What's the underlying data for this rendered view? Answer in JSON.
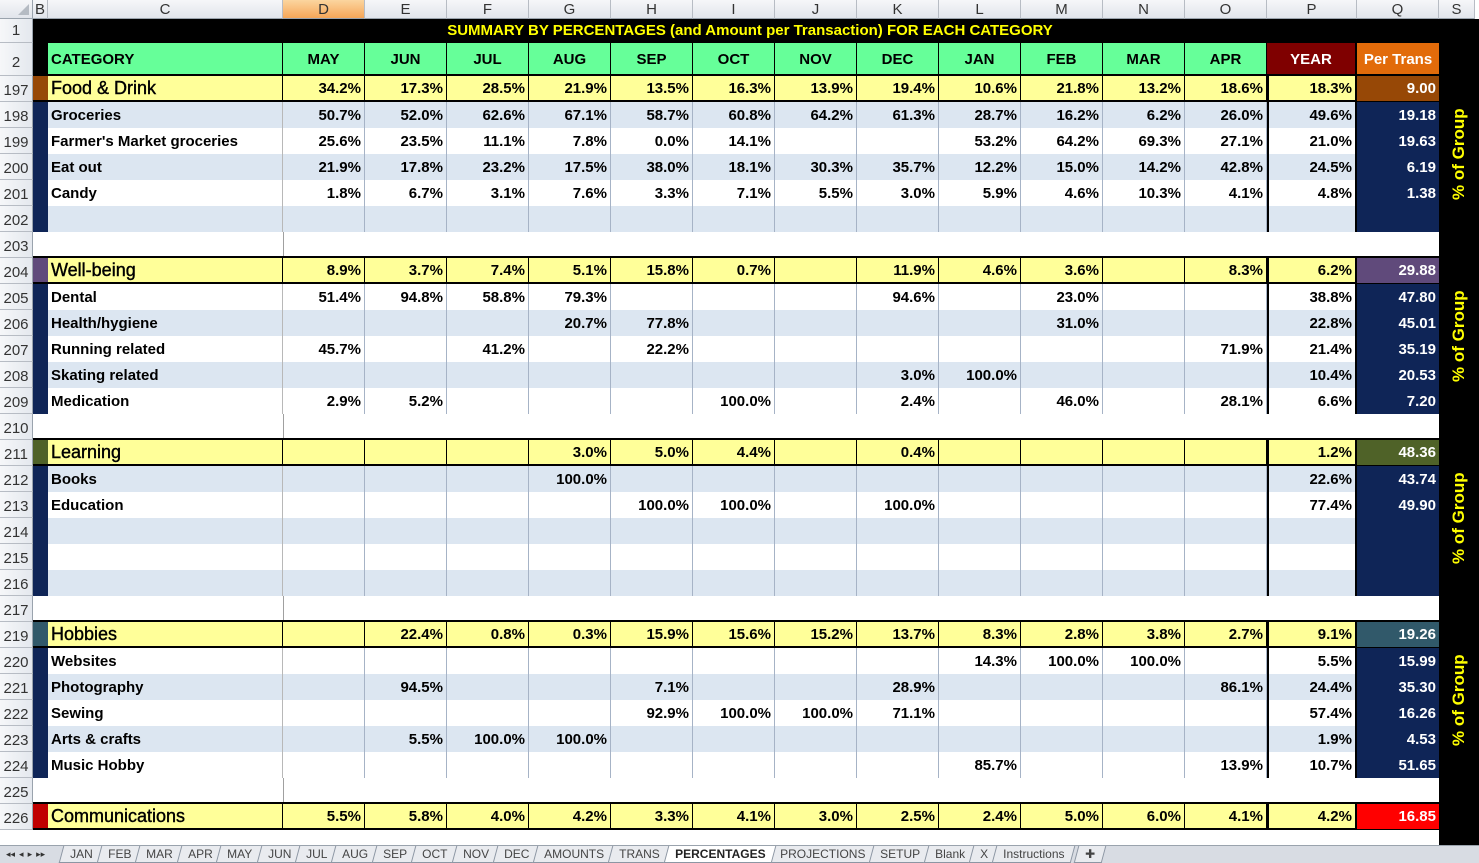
{
  "sheet": {
    "column_headers": [
      "B",
      "C",
      "D",
      "E",
      "F",
      "G",
      "H",
      "I",
      "J",
      "K",
      "L",
      "M",
      "N",
      "O",
      "P",
      "Q",
      "S"
    ],
    "selected_column": "D",
    "title": "SUMMARY BY PERCENTAGES (and Amount per Transaction) FOR EACH CATEGORY",
    "header": {
      "category": "CATEGORY",
      "months": [
        "MAY",
        "JUN",
        "JUL",
        "AUG",
        "SEP",
        "OCT",
        "NOV",
        "DEC",
        "JAN",
        "FEB",
        "MAR",
        "APR"
      ],
      "year": "YEAR",
      "per_trans": "Per Trans"
    },
    "side_label": "% of Group",
    "colors": {
      "header_green": "#66ff99",
      "year_red": "#7f0000",
      "per_trans_orange": "#e26b0a",
      "group_yellow": "#ffff99",
      "row_blue": "#dce6f1",
      "navy": "#0f2557",
      "title_yellow": "#ffff00"
    },
    "rows": [
      {
        "num": "197",
        "type": "group",
        "color": "#974806",
        "name": "Food & Drink",
        "values": [
          "34.2%",
          "17.3%",
          "28.5%",
          "21.9%",
          "13.5%",
          "16.3%",
          "13.9%",
          "19.4%",
          "10.6%",
          "21.8%",
          "13.2%",
          "18.6%"
        ],
        "year": "18.3%",
        "per_trans": "9.00"
      },
      {
        "num": "198",
        "type": "item",
        "name": "Groceries",
        "values": [
          "50.7%",
          "52.0%",
          "62.6%",
          "67.1%",
          "58.7%",
          "60.8%",
          "64.2%",
          "61.3%",
          "28.7%",
          "16.2%",
          "6.2%",
          "26.0%"
        ],
        "year": "49.6%",
        "per_trans": "19.18"
      },
      {
        "num": "199",
        "type": "item",
        "name": "Farmer's Market groceries",
        "values": [
          "25.6%",
          "23.5%",
          "11.1%",
          "7.8%",
          "0.0%",
          "14.1%",
          "",
          "",
          "53.2%",
          "64.2%",
          "69.3%",
          "27.1%"
        ],
        "year": "21.0%",
        "per_trans": "19.63"
      },
      {
        "num": "200",
        "type": "item",
        "name": "Eat out",
        "values": [
          "21.9%",
          "17.8%",
          "23.2%",
          "17.5%",
          "38.0%",
          "18.1%",
          "30.3%",
          "35.7%",
          "12.2%",
          "15.0%",
          "14.2%",
          "42.8%"
        ],
        "year": "24.5%",
        "per_trans": "6.19"
      },
      {
        "num": "201",
        "type": "item",
        "name": "Candy",
        "values": [
          "1.8%",
          "6.7%",
          "3.1%",
          "7.6%",
          "3.3%",
          "7.1%",
          "5.5%",
          "3.0%",
          "5.9%",
          "4.6%",
          "10.3%",
          "4.1%"
        ],
        "year": "4.8%",
        "per_trans": "1.38"
      },
      {
        "num": "202",
        "type": "item",
        "name": "",
        "values": [
          "",
          "",
          "",
          "",
          "",
          "",
          "",
          "",
          "",
          "",
          "",
          ""
        ],
        "year": "",
        "per_trans": ""
      },
      {
        "num": "203",
        "type": "blank"
      },
      {
        "num": "204",
        "type": "group",
        "color": "#604a7b",
        "name": "Well-being",
        "values": [
          "8.9%",
          "3.7%",
          "7.4%",
          "5.1%",
          "15.8%",
          "0.7%",
          "",
          "11.9%",
          "4.6%",
          "3.6%",
          "",
          "8.3%"
        ],
        "year": "6.2%",
        "per_trans": "29.88"
      },
      {
        "num": "205",
        "type": "item",
        "name": "Dental",
        "values": [
          "51.4%",
          "94.8%",
          "58.8%",
          "79.3%",
          "",
          "",
          "",
          "94.6%",
          "",
          "23.0%",
          "",
          ""
        ],
        "year": "38.8%",
        "per_trans": "47.80"
      },
      {
        "num": "206",
        "type": "item",
        "name": "Health/hygiene",
        "values": [
          "",
          "",
          "",
          "20.7%",
          "77.8%",
          "",
          "",
          "",
          "",
          "31.0%",
          "",
          ""
        ],
        "year": "22.8%",
        "per_trans": "45.01"
      },
      {
        "num": "207",
        "type": "item",
        "name": "Running related",
        "values": [
          "45.7%",
          "",
          "41.2%",
          "",
          "22.2%",
          "",
          "",
          "",
          "",
          "",
          "",
          "71.9%"
        ],
        "year": "21.4%",
        "per_trans": "35.19"
      },
      {
        "num": "208",
        "type": "item",
        "name": "Skating related",
        "values": [
          "",
          "",
          "",
          "",
          "",
          "",
          "",
          "3.0%",
          "100.0%",
          "",
          "",
          ""
        ],
        "year": "10.4%",
        "per_trans": "20.53"
      },
      {
        "num": "209",
        "type": "item",
        "name": "Medication",
        "values": [
          "2.9%",
          "5.2%",
          "",
          "",
          "",
          "100.0%",
          "",
          "2.4%",
          "",
          "46.0%",
          "",
          "28.1%"
        ],
        "year": "6.6%",
        "per_trans": "7.20"
      },
      {
        "num": "210",
        "type": "blank"
      },
      {
        "num": "211",
        "type": "group",
        "color": "#4f6228",
        "name": "Learning",
        "values": [
          "",
          "",
          "",
          "3.0%",
          "5.0%",
          "4.4%",
          "",
          "0.4%",
          "",
          "",
          "",
          ""
        ],
        "year": "1.2%",
        "per_trans": "48.36"
      },
      {
        "num": "212",
        "type": "item",
        "name": "Books",
        "values": [
          "",
          "",
          "",
          "100.0%",
          "",
          "",
          "",
          "",
          "",
          "",
          "",
          ""
        ],
        "year": "22.6%",
        "per_trans": "43.74"
      },
      {
        "num": "213",
        "type": "item",
        "name": "Education",
        "values": [
          "",
          "",
          "",
          "",
          "100.0%",
          "100.0%",
          "",
          "100.0%",
          "",
          "",
          "",
          ""
        ],
        "year": "77.4%",
        "per_trans": "49.90"
      },
      {
        "num": "214",
        "type": "item",
        "name": "",
        "values": [
          "",
          "",
          "",
          "",
          "",
          "",
          "",
          "",
          "",
          "",
          "",
          ""
        ],
        "year": "",
        "per_trans": ""
      },
      {
        "num": "215",
        "type": "item",
        "name": "",
        "values": [
          "",
          "",
          "",
          "",
          "",
          "",
          "",
          "",
          "",
          "",
          "",
          ""
        ],
        "year": "",
        "per_trans": ""
      },
      {
        "num": "216",
        "type": "item",
        "name": "",
        "values": [
          "",
          "",
          "",
          "",
          "",
          "",
          "",
          "",
          "",
          "",
          "",
          ""
        ],
        "year": "",
        "per_trans": ""
      },
      {
        "num": "217",
        "type": "blank"
      },
      {
        "num": "219",
        "type": "group",
        "color": "#31596a",
        "name": "Hobbies",
        "values": [
          "",
          "22.4%",
          "0.8%",
          "0.3%",
          "15.9%",
          "15.6%",
          "15.2%",
          "13.7%",
          "8.3%",
          "2.8%",
          "3.8%",
          "2.7%"
        ],
        "year": "9.1%",
        "per_trans": "19.26"
      },
      {
        "num": "220",
        "type": "item",
        "name": "Websites",
        "values": [
          "",
          "",
          "",
          "",
          "",
          "",
          "",
          "",
          "14.3%",
          "100.0%",
          "100.0%",
          ""
        ],
        "year": "5.5%",
        "per_trans": "15.99"
      },
      {
        "num": "221",
        "type": "item",
        "name": "Photography",
        "values": [
          "",
          "94.5%",
          "",
          "",
          "7.1%",
          "",
          "",
          "28.9%",
          "",
          "",
          "",
          "86.1%"
        ],
        "year": "24.4%",
        "per_trans": "35.30"
      },
      {
        "num": "222",
        "type": "item",
        "name": "Sewing",
        "values": [
          "",
          "",
          "",
          "",
          "92.9%",
          "100.0%",
          "100.0%",
          "71.1%",
          "",
          "",
          "",
          ""
        ],
        "year": "57.4%",
        "per_trans": "16.26"
      },
      {
        "num": "223",
        "type": "item",
        "name": "Arts & crafts",
        "values": [
          "",
          "5.5%",
          "100.0%",
          "100.0%",
          "",
          "",
          "",
          "",
          "",
          "",
          "",
          ""
        ],
        "year": "1.9%",
        "per_trans": "4.53"
      },
      {
        "num": "224",
        "type": "item",
        "name": "Music Hobby",
        "values": [
          "",
          "",
          "",
          "",
          "",
          "",
          "",
          "",
          "85.7%",
          "",
          "",
          "13.9%"
        ],
        "year": "10.7%",
        "per_trans": "51.65"
      },
      {
        "num": "225",
        "type": "blank"
      },
      {
        "num": "226",
        "type": "group",
        "color": "#c00000",
        "pt_color": "#ff0000",
        "name": "Communications",
        "values": [
          "5.5%",
          "5.8%",
          "4.0%",
          "4.2%",
          "3.3%",
          "4.1%",
          "3.0%",
          "2.5%",
          "2.4%",
          "5.0%",
          "6.0%",
          "4.1%"
        ],
        "year": "4.2%",
        "per_trans": "16.85"
      }
    ]
  },
  "tabs": {
    "items": [
      "JAN",
      "FEB",
      "MAR",
      "APR",
      "MAY",
      "JUN",
      "JUL",
      "AUG",
      "SEP",
      "OCT",
      "NOV",
      "DEC",
      "AMOUNTS",
      "TRANS",
      "PERCENTAGES",
      "PROJECTIONS",
      "SETUP",
      "Blank",
      "X",
      "Instructions"
    ],
    "active": "PERCENTAGES",
    "nav": [
      "◂◂",
      "◂",
      "▸",
      "▸▸"
    ]
  }
}
